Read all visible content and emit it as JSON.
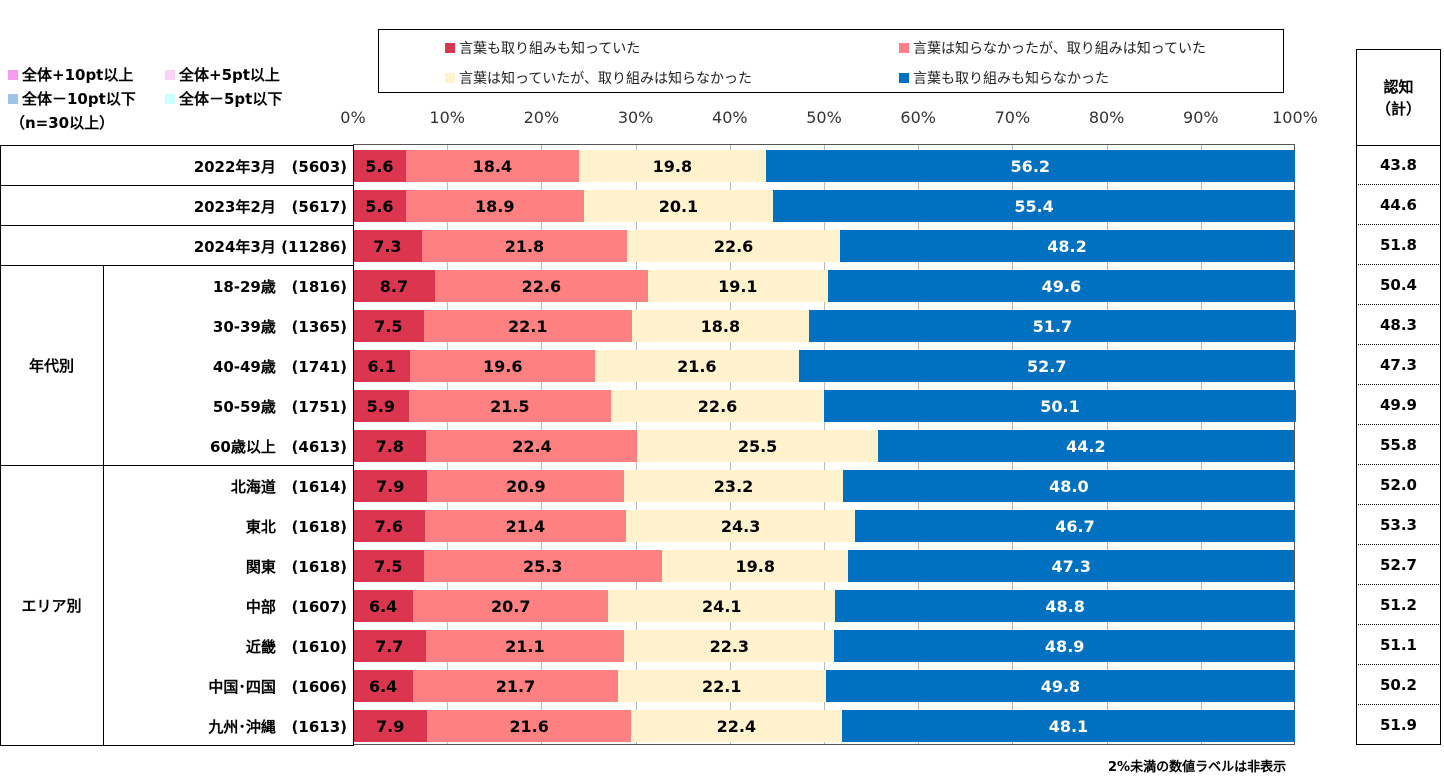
{
  "highlight_legend": [
    {
      "label": "全体+10pt以上",
      "color": "#f59bf0"
    },
    {
      "label": "全体+5pt以上",
      "color": "#f8d3f5"
    },
    {
      "label": "全体－10pt以下",
      "color": "#9dc3e6"
    },
    {
      "label": "全体－5pt以下",
      "color": "#ccffff"
    }
  ],
  "n_note": "（n=30以上）",
  "right_header": "認知\n（計）",
  "footnote": "2%未満の数値ラベルは非表示",
  "groups": [
    {
      "label": "年代別"
    },
    {
      "label": "エリア別"
    }
  ],
  "chart_data": {
    "type": "bar",
    "orientation": "horizontal",
    "stacked": true,
    "xlim": [
      0,
      100
    ],
    "x_ticks": [
      "0%",
      "10%",
      "20%",
      "30%",
      "40%",
      "50%",
      "60%",
      "70%",
      "80%",
      "90%",
      "100%"
    ],
    "grid": true,
    "legend_position": "top",
    "series": [
      {
        "name": "言葉も取り組みも知っていた",
        "color": "#dc3550",
        "values": [
          5.6,
          5.6,
          7.3,
          8.7,
          7.5,
          6.1,
          5.9,
          7.8,
          7.9,
          7.6,
          7.5,
          6.4,
          7.7,
          6.4,
          7.9
        ]
      },
      {
        "name": "言葉は知らなかったが、取り組みは知っていた",
        "color": "#ff8080",
        "values": [
          18.4,
          18.9,
          21.8,
          22.6,
          22.1,
          19.6,
          21.5,
          22.4,
          20.9,
          21.4,
          25.3,
          20.7,
          21.1,
          21.7,
          21.6
        ]
      },
      {
        "name": "言葉は知っていたが、取り組みは知らなかった",
        "color": "#fff2cc",
        "values": [
          19.8,
          20.1,
          22.6,
          19.1,
          18.8,
          21.6,
          22.6,
          25.5,
          23.2,
          24.3,
          19.8,
          24.1,
          22.3,
          22.1,
          22.4
        ]
      },
      {
        "name": "言葉も取り組みも知らなかった",
        "color": "#0070c0",
        "values": [
          56.2,
          55.4,
          48.2,
          49.6,
          51.7,
          52.7,
          50.1,
          44.2,
          48.0,
          46.7,
          47.3,
          48.8,
          48.9,
          49.8,
          48.1
        ]
      }
    ],
    "categories": [
      "2022年3月",
      "2023年2月",
      "2024年3月",
      "18-29歳",
      "30-39歳",
      "40-49歳",
      "50-59歳",
      "60歳以上",
      "北海道",
      "東北",
      "関東",
      "中部",
      "近畿",
      "中国･四国",
      "九州･沖縄"
    ],
    "n": [
      "(5603)",
      "(5617)",
      "(11286)",
      "(1816)",
      "(1365)",
      "(1741)",
      "(1751)",
      "(4613)",
      "(1614)",
      "(1618)",
      "(1618)",
      "(1607)",
      "(1610)",
      "(1606)",
      "(1613)"
    ],
    "recognition_total": [
      "43.8",
      "44.6",
      "51.8",
      "50.4",
      "48.3",
      "47.3",
      "49.9",
      "55.8",
      "52.0",
      "53.3",
      "52.7",
      "51.2",
      "51.1",
      "50.2",
      "51.9"
    ]
  }
}
